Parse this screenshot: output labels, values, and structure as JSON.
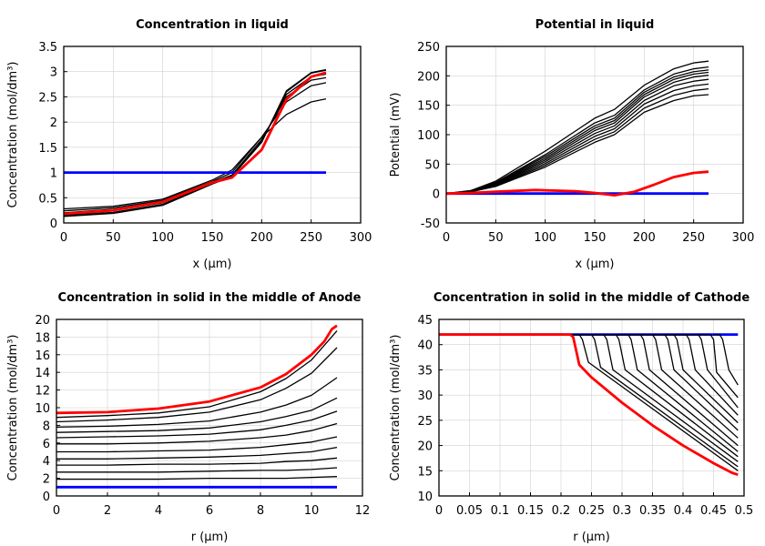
{
  "colors": {
    "blue": "#0000ff",
    "red": "#ff0000",
    "black": "#000000",
    "grid": "#d0d0d0"
  },
  "chart_data": [
    {
      "type": "line",
      "title": "Concentration in liquid",
      "xlabel": "x (µm)",
      "ylabel": "Concentration (mol/dm³)",
      "xlim": [
        0,
        300
      ],
      "ylim": [
        0,
        3.5
      ],
      "grid": true,
      "xticks": [
        "0",
        "50",
        "100",
        "150",
        "200",
        "250",
        "300"
      ],
      "yticks": [
        "0",
        "0.5",
        "1",
        "1.5",
        "2",
        "2.5",
        "3",
        "3.5"
      ],
      "series": [
        {
          "color": "black",
          "x": [
            0,
            50,
            100,
            150,
            170,
            200,
            225,
            250,
            265
          ],
          "y": [
            0.28,
            0.33,
            0.47,
            0.85,
            1.05,
            1.7,
            2.15,
            2.4,
            2.46
          ]
        },
        {
          "color": "black",
          "x": [
            0,
            50,
            100,
            150,
            170,
            200,
            225,
            250,
            265
          ],
          "y": [
            0.24,
            0.3,
            0.45,
            0.82,
            1.0,
            1.7,
            2.4,
            2.72,
            2.78
          ]
        },
        {
          "color": "black",
          "x": [
            0,
            50,
            100,
            150,
            170,
            200,
            225,
            250,
            265
          ],
          "y": [
            0.2,
            0.27,
            0.43,
            0.8,
            0.95,
            1.65,
            2.5,
            2.83,
            2.88
          ]
        },
        {
          "color": "black",
          "x": [
            0,
            50,
            100,
            150,
            170,
            200,
            225,
            250,
            265
          ],
          "y": [
            0.17,
            0.24,
            0.4,
            0.79,
            0.93,
            1.62,
            2.55,
            2.9,
            2.95
          ]
        },
        {
          "color": "black",
          "x": [
            0,
            50,
            100,
            150,
            170,
            200,
            225,
            250,
            265
          ],
          "y": [
            0.15,
            0.21,
            0.37,
            0.78,
            0.93,
            1.6,
            2.6,
            2.97,
            3.03
          ]
        },
        {
          "color": "black",
          "x": [
            0,
            50,
            100,
            150,
            170,
            200,
            225,
            250,
            265
          ],
          "y": [
            0.13,
            0.19,
            0.35,
            0.77,
            0.92,
            1.6,
            2.62,
            2.98,
            3.04
          ]
        },
        {
          "color": "blue",
          "x": [
            0,
            265
          ],
          "y": [
            1,
            1
          ]
        },
        {
          "color": "red",
          "x": [
            0,
            50,
            100,
            150,
            170,
            200,
            225,
            250,
            265
          ],
          "y": [
            0.18,
            0.25,
            0.42,
            0.8,
            0.9,
            1.45,
            2.45,
            2.9,
            2.98
          ]
        }
      ]
    },
    {
      "type": "line",
      "title": "Potential in liquid",
      "xlabel": "x (µm)",
      "ylabel": "Potential (mV)",
      "xlim": [
        0,
        300
      ],
      "ylim": [
        -50,
        250
      ],
      "grid": true,
      "xticks": [
        "0",
        "50",
        "100",
        "150",
        "200",
        "250",
        "300"
      ],
      "yticks": [
        "-50",
        "0",
        "50",
        "100",
        "150",
        "200",
        "250"
      ],
      "series": [
        {
          "color": "black",
          "x": [
            0,
            25,
            50,
            100,
            150,
            170,
            200,
            230,
            250,
            265
          ],
          "y": [
            0,
            3,
            12,
            45,
            87,
            100,
            138,
            158,
            166,
            168
          ]
        },
        {
          "color": "black",
          "x": [
            0,
            25,
            50,
            100,
            150,
            170,
            200,
            230,
            250,
            265
          ],
          "y": [
            0,
            3,
            13,
            48,
            92,
            105,
            145,
            167,
            175,
            178
          ]
        },
        {
          "color": "black",
          "x": [
            0,
            25,
            50,
            100,
            150,
            170,
            200,
            230,
            250,
            265
          ],
          "y": [
            0,
            3,
            14,
            51,
            97,
            110,
            152,
            175,
            183,
            186
          ]
        },
        {
          "color": "black",
          "x": [
            0,
            25,
            50,
            100,
            150,
            170,
            200,
            230,
            250,
            265
          ],
          "y": [
            0,
            4,
            15,
            54,
            102,
            115,
            158,
            183,
            191,
            194
          ]
        },
        {
          "color": "black",
          "x": [
            0,
            25,
            50,
            100,
            150,
            170,
            200,
            230,
            250,
            265
          ],
          "y": [
            0,
            4,
            16,
            57,
            107,
            120,
            164,
            189,
            198,
            201
          ]
        },
        {
          "color": "black",
          "x": [
            0,
            25,
            50,
            100,
            150,
            170,
            200,
            230,
            250,
            265
          ],
          "y": [
            0,
            4,
            17,
            60,
            111,
            124,
            168,
            194,
            203,
            206
          ]
        },
        {
          "color": "black",
          "x": [
            0,
            25,
            50,
            100,
            150,
            170,
            200,
            230,
            250,
            265
          ],
          "y": [
            0,
            4,
            18,
            63,
            115,
            128,
            172,
            198,
            207,
            210
          ]
        },
        {
          "color": "black",
          "x": [
            0,
            25,
            50,
            100,
            150,
            170,
            200,
            230,
            250,
            265
          ],
          "y": [
            0,
            5,
            19,
            66,
            120,
            133,
            176,
            203,
            212,
            215
          ]
        },
        {
          "color": "black",
          "x": [
            0,
            25,
            50,
            100,
            150,
            170,
            200,
            230,
            250,
            265
          ],
          "y": [
            0,
            5,
            21,
            72,
            128,
            143,
            184,
            212,
            222,
            225
          ]
        },
        {
          "color": "blue",
          "x": [
            0,
            265
          ],
          "y": [
            0,
            0
          ]
        },
        {
          "color": "red",
          "x": [
            0,
            25,
            50,
            90,
            130,
            150,
            170,
            190,
            210,
            230,
            250,
            265
          ],
          "y": [
            0,
            1,
            3,
            6,
            4,
            1,
            -3,
            3,
            15,
            28,
            35,
            37
          ]
        }
      ]
    },
    {
      "type": "line",
      "title": "Concentration in solid in the middle of Anode",
      "xlabel": "r (µm)",
      "ylabel": "Concentration (mol/dm³)",
      "xlim": [
        0,
        12
      ],
      "ylim": [
        0,
        20
      ],
      "grid": true,
      "xticks": [
        "0",
        "2",
        "4",
        "6",
        "8",
        "10",
        "12"
      ],
      "yticks": [
        "0",
        "2",
        "4",
        "6",
        "8",
        "10",
        "12",
        "14",
        "16",
        "18",
        "20"
      ],
      "series": [
        {
          "color": "black",
          "x": [
            0,
            2,
            4,
            6,
            8,
            9,
            10,
            11
          ],
          "y": [
            1.9,
            1.9,
            1.9,
            2.0,
            2.0,
            2.0,
            2.1,
            2.2
          ]
        },
        {
          "color": "black",
          "x": [
            0,
            2,
            4,
            6,
            8,
            9,
            10,
            11
          ],
          "y": [
            2.7,
            2.7,
            2.7,
            2.8,
            2.9,
            2.9,
            3.0,
            3.2
          ]
        },
        {
          "color": "black",
          "x": [
            0,
            2,
            4,
            6,
            8,
            9,
            10,
            11
          ],
          "y": [
            3.5,
            3.5,
            3.6,
            3.6,
            3.7,
            3.9,
            4.0,
            4.3
          ]
        },
        {
          "color": "black",
          "x": [
            0,
            2,
            4,
            6,
            8,
            9,
            10,
            11
          ],
          "y": [
            4.2,
            4.2,
            4.3,
            4.4,
            4.6,
            4.8,
            5.0,
            5.5
          ]
        },
        {
          "color": "black",
          "x": [
            0,
            2,
            4,
            6,
            8,
            9,
            10,
            11
          ],
          "y": [
            5.0,
            5.0,
            5.1,
            5.2,
            5.5,
            5.8,
            6.1,
            6.7
          ]
        },
        {
          "color": "black",
          "x": [
            0,
            2,
            4,
            6,
            8,
            9,
            10,
            11
          ],
          "y": [
            5.9,
            5.9,
            6.0,
            6.2,
            6.6,
            6.9,
            7.4,
            8.2
          ]
        },
        {
          "color": "black",
          "x": [
            0,
            2,
            4,
            6,
            8,
            9,
            10,
            11
          ],
          "y": [
            6.6,
            6.7,
            6.8,
            7.0,
            7.5,
            8.0,
            8.6,
            9.6
          ]
        },
        {
          "color": "black",
          "x": [
            0,
            2,
            4,
            6,
            8,
            9,
            10,
            11
          ],
          "y": [
            7.2,
            7.3,
            7.4,
            7.7,
            8.4,
            9.0,
            9.7,
            11.1
          ]
        },
        {
          "color": "black",
          "x": [
            0,
            2,
            4,
            6,
            8,
            9,
            10,
            11
          ],
          "y": [
            7.8,
            7.9,
            8.1,
            8.5,
            9.5,
            10.3,
            11.4,
            13.4
          ]
        },
        {
          "color": "black",
          "x": [
            0,
            2,
            4,
            6,
            8,
            9,
            10,
            11
          ],
          "y": [
            8.4,
            8.6,
            8.9,
            9.5,
            10.9,
            12.2,
            13.9,
            16.8
          ]
        },
        {
          "color": "black",
          "x": [
            0,
            2,
            4,
            6,
            8,
            9,
            10,
            11
          ],
          "y": [
            8.9,
            9.1,
            9.4,
            10.1,
            11.8,
            13.3,
            15.4,
            18.7
          ]
        },
        {
          "color": "blue",
          "x": [
            0,
            11
          ],
          "y": [
            1,
            1
          ]
        },
        {
          "color": "red",
          "x": [
            0,
            2,
            4,
            6,
            8,
            9,
            10,
            10.5,
            10.8,
            11
          ],
          "y": [
            9.4,
            9.5,
            9.9,
            10.7,
            12.3,
            13.8,
            16,
            17.5,
            18.9,
            19.3
          ]
        }
      ]
    },
    {
      "type": "line",
      "title": "Concentration in solid in the middle of Cathode",
      "xlabel": "r (µm)",
      "ylabel": "Concentration (mol/dm³)",
      "xlim": [
        0,
        0.5
      ],
      "ylim": [
        10,
        45
      ],
      "grid": true,
      "xticks": [
        "0",
        "0.05",
        "0.1",
        "0.15",
        "0.2",
        "0.25",
        "0.3",
        "0.35",
        "0.4",
        "0.45",
        "0.5"
      ],
      "yticks": [
        "10",
        "15",
        "20",
        "25",
        "30",
        "35",
        "40",
        "45"
      ],
      "series": [
        {
          "color": "blue",
          "x": [
            0,
            0.49
          ],
          "y": [
            42,
            42
          ]
        },
        {
          "color": "black",
          "x": [
            0.21,
            0.23,
            0.235,
            0.245,
            0.49
          ],
          "y": [
            42,
            42,
            41,
            36.5,
            15
          ]
        },
        {
          "color": "black",
          "x": [
            0.21,
            0.25,
            0.255,
            0.265,
            0.49
          ],
          "y": [
            42,
            42,
            41,
            35.5,
            15.8
          ]
        },
        {
          "color": "black",
          "x": [
            0.21,
            0.27,
            0.275,
            0.285,
            0.49
          ],
          "y": [
            42,
            42,
            41,
            35,
            16.8
          ]
        },
        {
          "color": "black",
          "x": [
            0.21,
            0.29,
            0.295,
            0.305,
            0.49
          ],
          "y": [
            42,
            42,
            41,
            35,
            17.8
          ]
        },
        {
          "color": "black",
          "x": [
            0.21,
            0.31,
            0.315,
            0.325,
            0.49
          ],
          "y": [
            42,
            42,
            41,
            35,
            18.8
          ]
        },
        {
          "color": "black",
          "x": [
            0.21,
            0.33,
            0.335,
            0.345,
            0.49
          ],
          "y": [
            42,
            42,
            41,
            35,
            20
          ]
        },
        {
          "color": "black",
          "x": [
            0.21,
            0.35,
            0.355,
            0.365,
            0.49
          ],
          "y": [
            42,
            42,
            41,
            35,
            21.5
          ]
        },
        {
          "color": "black",
          "x": [
            0.21,
            0.37,
            0.375,
            0.385,
            0.49
          ],
          "y": [
            42,
            42,
            41,
            35,
            23
          ]
        },
        {
          "color": "black",
          "x": [
            0.21,
            0.385,
            0.39,
            0.4,
            0.49
          ],
          "y": [
            42,
            42,
            41,
            35,
            24.5
          ]
        },
        {
          "color": "black",
          "x": [
            0.21,
            0.405,
            0.41,
            0.42,
            0.49
          ],
          "y": [
            42,
            42,
            41,
            35,
            26
          ]
        },
        {
          "color": "black",
          "x": [
            0.21,
            0.425,
            0.43,
            0.44,
            0.49
          ],
          "y": [
            42,
            42,
            41,
            35,
            27.5
          ]
        },
        {
          "color": "black",
          "x": [
            0.21,
            0.445,
            0.45,
            0.455,
            0.49
          ],
          "y": [
            42,
            42,
            41,
            34.5,
            29.5
          ]
        },
        {
          "color": "black",
          "x": [
            0.45,
            0.46,
            0.465,
            0.475,
            0.49
          ],
          "y": [
            42,
            42,
            41,
            35,
            32
          ]
        },
        {
          "color": "red",
          "x": [
            0,
            0.215,
            0.22,
            0.23,
            0.25,
            0.3,
            0.35,
            0.4,
            0.45,
            0.48,
            0.49
          ],
          "y": [
            42,
            42,
            41.5,
            36,
            33.5,
            28.5,
            24,
            20,
            16.5,
            14.6,
            14.2
          ]
        }
      ]
    }
  ]
}
